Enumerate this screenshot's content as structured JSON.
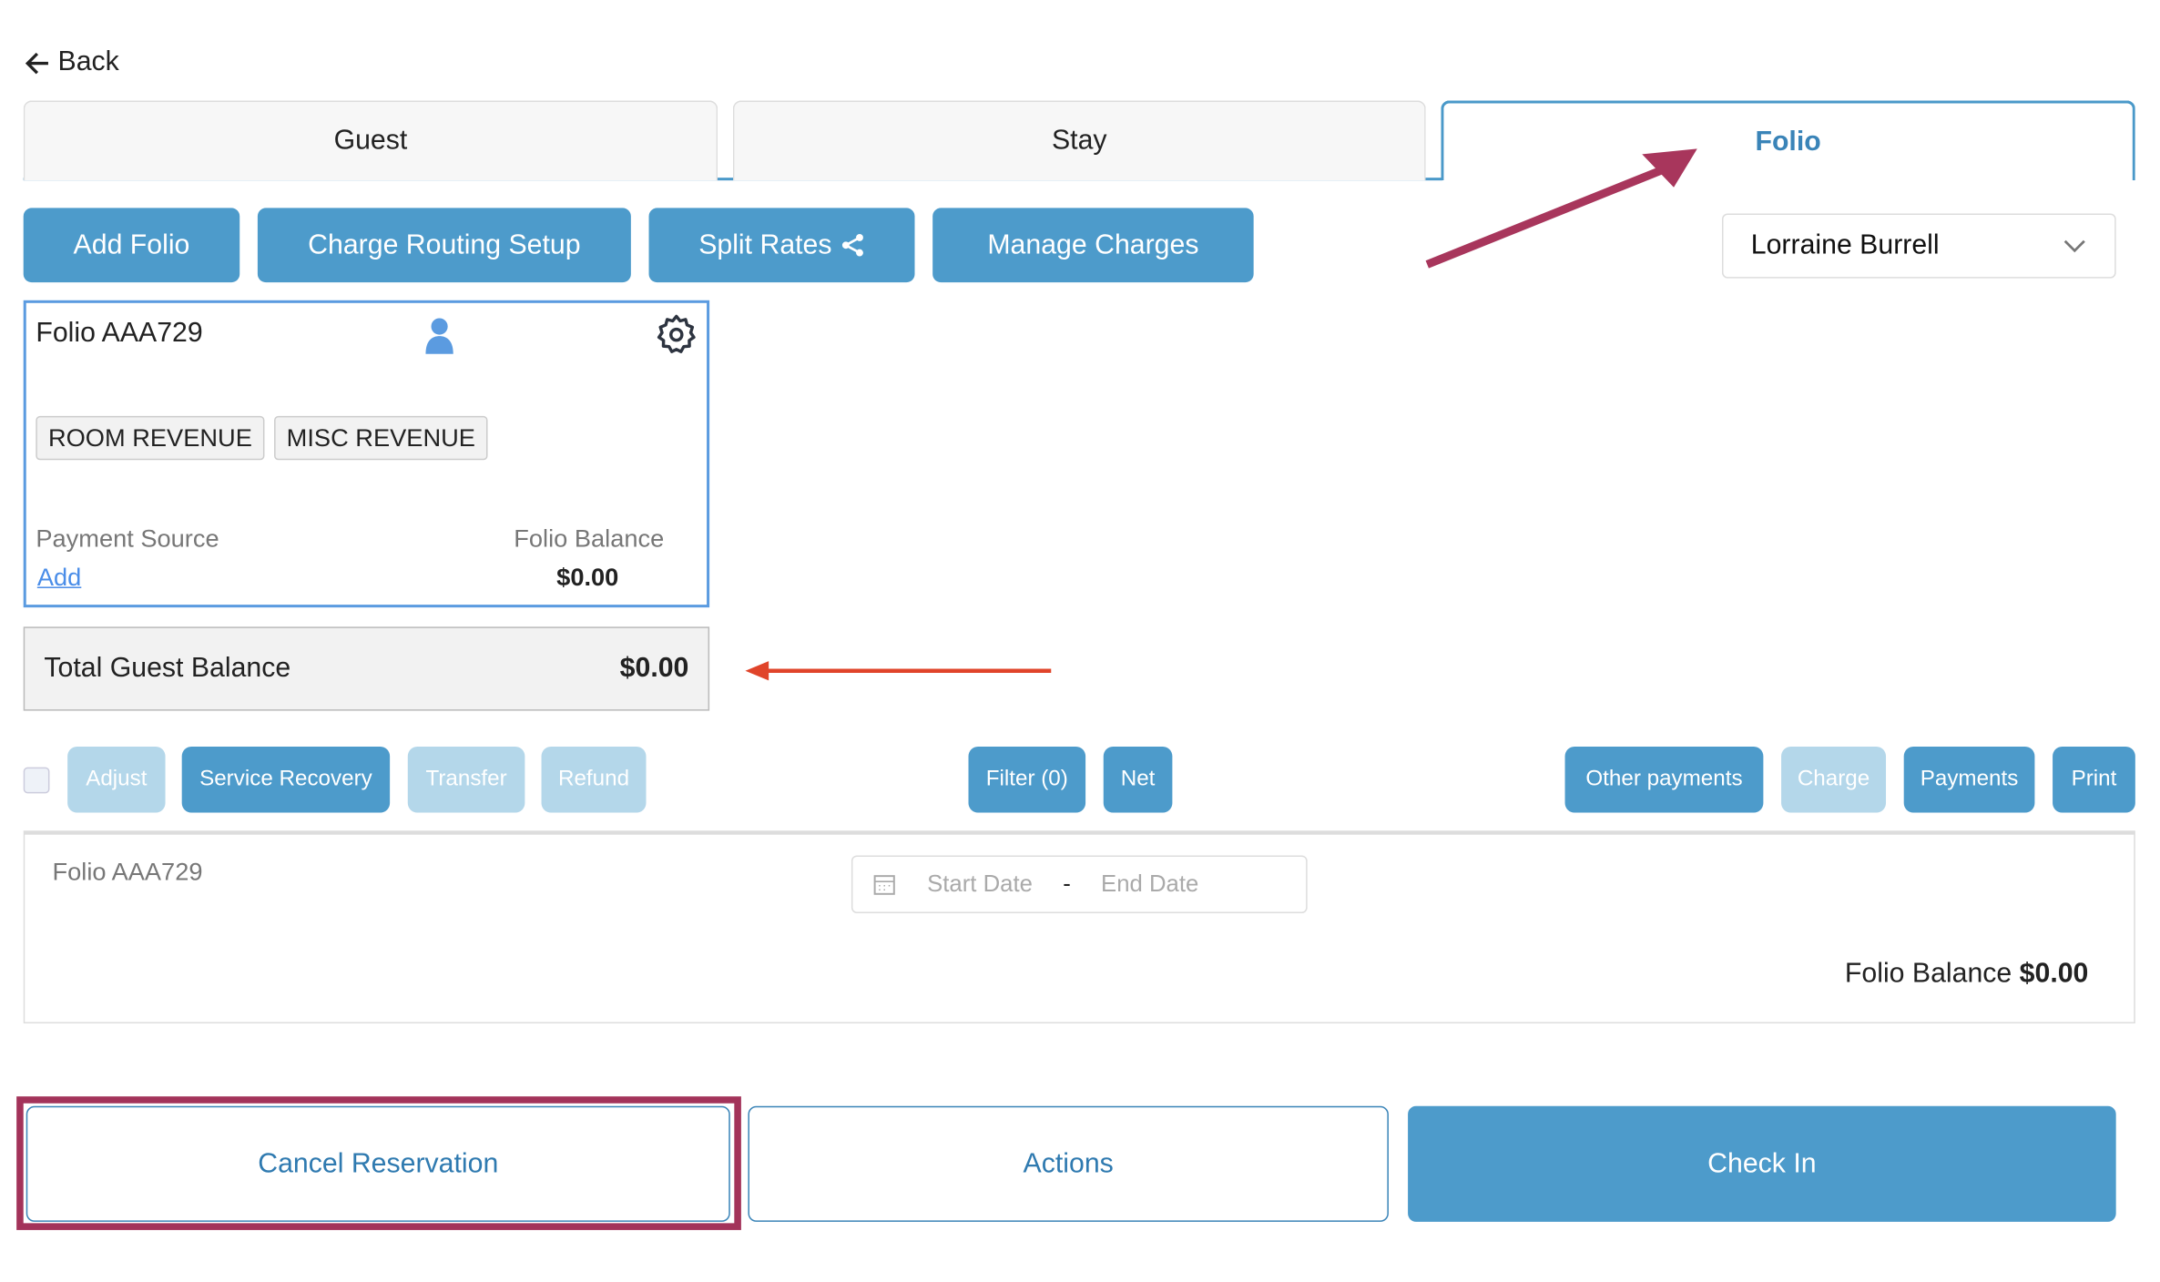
{
  "nav": {
    "back_label": "Back"
  },
  "tabs": [
    {
      "label": "Guest"
    },
    {
      "label": "Stay"
    },
    {
      "label": "Folio",
      "active": true
    }
  ],
  "toolbar": {
    "add_folio": "Add Folio",
    "charge_routing": "Charge Routing Setup",
    "split_rates": "Split Rates",
    "manage_charges": "Manage Charges"
  },
  "guest_select": {
    "value": "Lorraine Burrell"
  },
  "folio_card": {
    "title": "Folio AAA729",
    "tags": [
      "ROOM REVENUE",
      "MISC REVENUE"
    ],
    "payment_source_label": "Payment Source",
    "payment_source_action": "Add",
    "balance_label": "Folio Balance",
    "balance": "$0.00"
  },
  "total": {
    "label": "Total Guest Balance",
    "value": "$0.00"
  },
  "actions": {
    "adjust": "Adjust",
    "service_recovery": "Service Recovery",
    "transfer": "Transfer",
    "refund": "Refund",
    "filter": "Filter (0)",
    "net": "Net",
    "other_payments": "Other payments",
    "charge": "Charge",
    "payments": "Payments",
    "print": "Print"
  },
  "panel": {
    "title": "Folio AAA729",
    "start_placeholder": "Start Date",
    "separator": "-",
    "end_placeholder": "End Date",
    "balance_label": "Folio Balance",
    "balance": "$0.00"
  },
  "footer": {
    "cancel": "Cancel Reservation",
    "actions": "Actions",
    "check_in": "Check In"
  },
  "colors": {
    "primary": "#4d9bcb",
    "disabled": "#b4d7ea",
    "annotation_magenta": "#a8365c",
    "annotation_red": "#e0442a"
  }
}
